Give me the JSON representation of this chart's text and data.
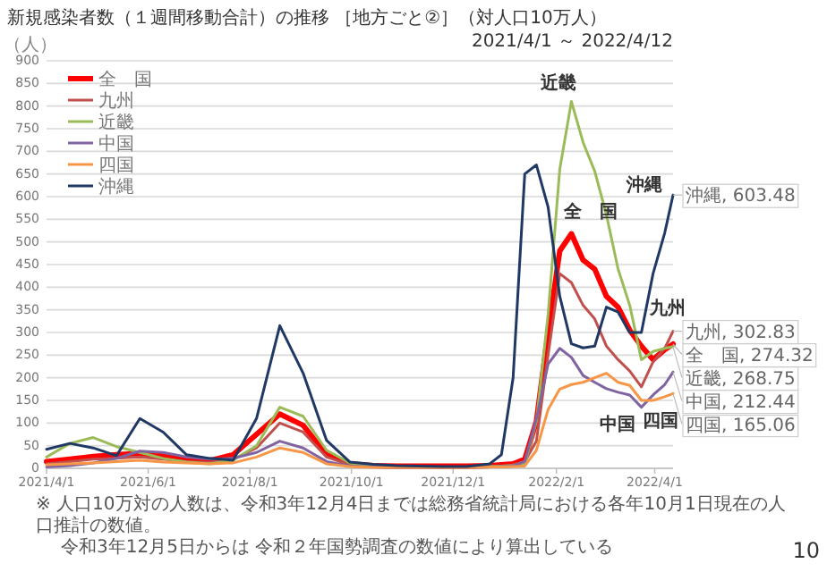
{
  "chart_data": {
    "type": "line",
    "title": "新規感染者数（１週間移動合計）の推移 ［地方ごと②］（対人口10万人）",
    "subtitle": "2021/4/1 ～ 2022/4/12",
    "ylabel": "（人）",
    "x": [
      "2021-04-01",
      "2021-04-15",
      "2021-04-29",
      "2021-05-13",
      "2021-05-27",
      "2021-06-10",
      "2021-06-24",
      "2021-07-08",
      "2021-07-22",
      "2021-08-05",
      "2021-08-19",
      "2021-09-02",
      "2021-09-16",
      "2021-09-30",
      "2021-10-14",
      "2021-10-28",
      "2021-11-11",
      "2021-11-25",
      "2021-12-09",
      "2021-12-23",
      "2021-12-30",
      "2022-01-06",
      "2022-01-13",
      "2022-01-20",
      "2022-01-27",
      "2022-02-03",
      "2022-02-10",
      "2022-02-17",
      "2022-02-24",
      "2022-03-03",
      "2022-03-10",
      "2022-03-17",
      "2022-03-24",
      "2022-03-31",
      "2022-04-07",
      "2022-04-12"
    ],
    "series": [
      {
        "name": "全　国",
        "color": "#ff0000",
        "values": [
          15,
          20,
          26,
          30,
          33,
          27,
          20,
          17,
          30,
          75,
          120,
          95,
          30,
          10,
          6,
          5,
          5,
          5,
          5,
          6,
          8,
          10,
          20,
          104,
          300,
          480,
          518,
          460,
          440,
          380,
          356,
          305,
          270,
          240,
          262,
          274.32
        ],
        "value_labels": [
          null,
          null,
          null,
          null,
          null,
          null,
          null,
          null,
          null,
          null,
          null,
          null,
          null,
          null,
          null,
          null,
          null,
          null,
          null,
          null,
          null,
          null,
          null,
          null,
          null,
          null,
          null,
          null,
          null,
          null,
          null,
          null,
          null,
          null,
          null,
          "全　国, 274.32"
        ]
      },
      {
        "name": "九州",
        "color": "#c0504d",
        "values": [
          10,
          15,
          20,
          22,
          25,
          20,
          15,
          13,
          20,
          45,
          100,
          80,
          25,
          8,
          4,
          3,
          3,
          3,
          3,
          4,
          5,
          8,
          15,
          60,
          250,
          430,
          410,
          360,
          330,
          270,
          240,
          215,
          180,
          235,
          265,
          302.83
        ],
        "value_labels": [
          null,
          null,
          null,
          null,
          null,
          null,
          null,
          null,
          null,
          null,
          null,
          null,
          null,
          null,
          null,
          null,
          null,
          null,
          null,
          null,
          null,
          null,
          null,
          null,
          null,
          null,
          null,
          null,
          null,
          null,
          null,
          null,
          null,
          null,
          null,
          "九州, 302.83"
        ]
      },
      {
        "name": "近畿",
        "color": "#9bbb59",
        "values": [
          25,
          55,
          68,
          48,
          35,
          22,
          14,
          10,
          18,
          50,
          135,
          115,
          40,
          12,
          5,
          4,
          3,
          3,
          3,
          4,
          5,
          6,
          10,
          104,
          340,
          660,
          810,
          720,
          656,
          560,
          440,
          360,
          240,
          258,
          265,
          268.75
        ],
        "value_labels": [
          null,
          null,
          null,
          null,
          null,
          null,
          null,
          null,
          null,
          null,
          null,
          null,
          null,
          null,
          null,
          null,
          null,
          null,
          null,
          null,
          null,
          null,
          null,
          null,
          null,
          null,
          null,
          null,
          null,
          null,
          null,
          null,
          null,
          null,
          null,
          "近畿, 268.75"
        ]
      },
      {
        "name": "中国",
        "color": "#8064a2",
        "values": [
          3,
          6,
          12,
          22,
          38,
          35,
          25,
          20,
          22,
          35,
          60,
          45,
          15,
          5,
          3,
          2,
          2,
          2,
          2,
          3,
          4,
          5,
          15,
          110,
          230,
          265,
          245,
          205,
          190,
          176,
          168,
          162,
          135,
          162,
          185,
          212.44
        ],
        "value_labels": [
          null,
          null,
          null,
          null,
          null,
          null,
          null,
          null,
          null,
          null,
          null,
          null,
          null,
          null,
          null,
          null,
          null,
          null,
          null,
          null,
          null,
          null,
          null,
          null,
          null,
          null,
          null,
          null,
          null,
          null,
          null,
          null,
          null,
          null,
          null,
          "中国, 212.44"
        ]
      },
      {
        "name": "四国",
        "color": "#f79646",
        "values": [
          8,
          10,
          12,
          15,
          18,
          14,
          12,
          10,
          12,
          25,
          45,
          35,
          10,
          4,
          2,
          2,
          2,
          2,
          2,
          3,
          3,
          4,
          5,
          40,
          130,
          175,
          185,
          190,
          200,
          210,
          190,
          183,
          150,
          150,
          158,
          165.06
        ],
        "value_labels": [
          null,
          null,
          null,
          null,
          null,
          null,
          null,
          null,
          null,
          null,
          null,
          null,
          null,
          null,
          null,
          null,
          null,
          null,
          null,
          null,
          null,
          null,
          null,
          null,
          null,
          null,
          null,
          null,
          null,
          null,
          null,
          null,
          null,
          null,
          null,
          "四国, 165.06"
        ]
      },
      {
        "name": "沖縄",
        "color": "#1f3864",
        "values": [
          42,
          55,
          45,
          28,
          110,
          80,
          30,
          22,
          18,
          110,
          315,
          210,
          62,
          14,
          9,
          6,
          5,
          4,
          4,
          10,
          30,
          200,
          650,
          670,
          577,
          380,
          275,
          266,
          270,
          356,
          345,
          300,
          300,
          430,
          520,
          603.48
        ],
        "value_labels": [
          null,
          null,
          null,
          null,
          null,
          null,
          null,
          null,
          null,
          null,
          null,
          null,
          null,
          null,
          null,
          null,
          null,
          null,
          null,
          null,
          null,
          null,
          null,
          null,
          null,
          null,
          null,
          null,
          null,
          null,
          null,
          null,
          null,
          null,
          null,
          "沖縄, 603.48"
        ]
      }
    ],
    "xlim": [
      "2021-04-01",
      "2022-04-12"
    ],
    "ylim": [
      0,
      900
    ],
    "yticks": [
      0,
      50,
      100,
      150,
      200,
      250,
      300,
      350,
      400,
      450,
      500,
      550,
      600,
      650,
      700,
      750,
      800,
      850,
      900
    ],
    "xticks": [
      {
        "value": "2021-04-01",
        "label": "2021/4/1"
      },
      {
        "value": "2021-06-01",
        "label": "2021/6/1"
      },
      {
        "value": "2021-08-01",
        "label": "2021/8/1"
      },
      {
        "value": "2021-10-01",
        "label": "2021/10/1"
      },
      {
        "value": "2021-12-01",
        "label": "2021/12/1"
      },
      {
        "value": "2022-02-01",
        "label": "2022/2/1"
      },
      {
        "value": "2022-04-01",
        "label": "2022/4/1"
      }
    ],
    "grid": "y",
    "legend": "top left",
    "annotations": [
      "近畿",
      "全　国",
      "沖縄",
      "九州",
      "中国",
      "四国",
      "※ 人口10万対の人数は、令和3年12月4日までは総務省統計局における各年10月1日現在の人口推計の数値。",
      "令和3年12月5日からは 令和２年国勢調査の数値により算出している",
      "10"
    ]
  }
}
